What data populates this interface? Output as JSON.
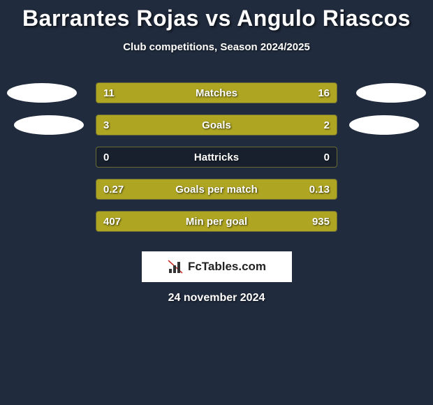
{
  "title": "Barrantes Rojas vs Angulo Riascos",
  "subtitle": "Club competitions, Season 2024/2025",
  "date": "24 november 2024",
  "logo_text": "FcTables.com",
  "colors": {
    "background": "#202b3d",
    "bar_fill": "#aea523",
    "bar_track": "#18202e",
    "bar_border": "#6b6b36",
    "disc": "#ffffff",
    "text": "#ffffff",
    "logo_bg": "#ffffff"
  },
  "rows": [
    {
      "label": "Matches",
      "left_val": "11",
      "right_val": "16",
      "left_pct": 40.7,
      "right_pct": 59.3,
      "left_disc": true,
      "right_disc": true,
      "disc_offset": false
    },
    {
      "label": "Goals",
      "left_val": "3",
      "right_val": "2",
      "left_pct": 60.0,
      "right_pct": 40.0,
      "left_disc": true,
      "right_disc": true,
      "disc_offset": true
    },
    {
      "label": "Hattricks",
      "left_val": "0",
      "right_val": "0",
      "left_pct": 0.0,
      "right_pct": 0.0,
      "left_disc": false,
      "right_disc": false,
      "disc_offset": false
    },
    {
      "label": "Goals per match",
      "left_val": "0.27",
      "right_val": "0.13",
      "left_pct": 67.5,
      "right_pct": 32.5,
      "left_disc": false,
      "right_disc": false,
      "disc_offset": false
    },
    {
      "label": "Min per goal",
      "left_val": "407",
      "right_val": "935",
      "left_pct": 30.3,
      "right_pct": 69.7,
      "left_disc": false,
      "right_disc": false,
      "disc_offset": false
    }
  ]
}
